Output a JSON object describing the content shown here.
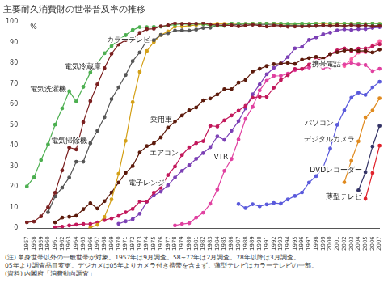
{
  "chart_data": {
    "type": "line",
    "title": "主要耐久消費財の世帯普及率の推移",
    "y_label": "%",
    "categories": [
      "1957",
      "1958",
      "1959",
      "1960",
      "1961",
      "1962",
      "1963",
      "1964",
      "1965",
      "1966",
      "1967",
      "1968",
      "1969",
      "1970",
      "1971",
      "1972",
      "1973",
      "1974",
      "1975",
      "1976",
      "1977",
      "1978",
      "1979",
      "1980",
      "1981",
      "1982",
      "1983",
      "1984",
      "1985",
      "1986",
      "1987",
      "1988",
      "1989",
      "1990",
      "1991",
      "1992",
      "1993",
      "1994",
      "1995",
      "1996",
      "1997",
      "1998",
      "1999",
      "2000",
      "2001",
      "2002",
      "2003",
      "2004",
      "2005",
      "2006",
      "2007"
    ],
    "ylim": [
      0,
      100
    ],
    "yticks": [
      0,
      10,
      20,
      30,
      40,
      50,
      60,
      70,
      80,
      90,
      100
    ],
    "grid": false,
    "marker": "circle",
    "series": [
      {
        "name": "電気冷蔵庫",
        "color": "#7a1f1f",
        "values": [
          2.8,
          3.2,
          5.7,
          10.1,
          17.2,
          28.0,
          39.1,
          38.2,
          51.4,
          61.6,
          69.7,
          77.6,
          84.6,
          89.1,
          91.2,
          91.6,
          94.7,
          96.5,
          96.7,
          97.9,
          98.4,
          99.4,
          99.1,
          99.1,
          99.2,
          99.5,
          98.8,
          98.5,
          98.4,
          98.4,
          97.9,
          98.3,
          98.7,
          98.2,
          97.8,
          98.3,
          98.1,
          97.7,
          97.8,
          97.8,
          98.0,
          98.1,
          98.4,
          98.1,
          98.4,
          98.0,
          98.4,
          98.0,
          98.4,
          97.9,
          98.1
        ]
      },
      {
        "name": "電気洗濯機",
        "color": "#4caf50",
        "values": [
          20.2,
          24.6,
          33.0,
          40.6,
          50.2,
          58.1,
          66.4,
          61.4,
          68.5,
          75.5,
          79.8,
          84.8,
          88.3,
          91.4,
          93.6,
          96.1,
          97.5,
          97.5,
          97.6,
          97.7,
          98.3,
          98.7,
          99.0,
          98.8,
          99.0,
          99.0,
          98.2,
          98.2,
          98.1,
          99.6,
          99.3,
          99.1,
          99.3,
          99.5,
          99.4,
          99.4,
          99.3,
          99.1,
          98.9,
          99.3,
          99.0,
          99.2,
          99.6,
          99.4,
          99.3,
          99.3,
          99.2,
          99.4,
          99.0,
          99.4,
          99.0
        ]
      },
      {
        "name": "電気掃除機",
        "color": "#555555",
        "values": [
          null,
          null,
          null,
          7.7,
          15.4,
          19.6,
          24.5,
          32.2,
          32.2,
          41.2,
          47.2,
          53.8,
          62.6,
          68.3,
          74.3,
          81.0,
          85.2,
          91.2,
          91.2,
          93.7,
          94.5,
          95.8,
          95.9,
          95.8,
          96.3,
          97.1,
          97.2,
          98.4,
          98.4,
          98.5,
          98.8,
          98.3,
          98.8,
          98.8,
          98.9,
          98.8,
          98.3,
          98.4,
          98.3,
          98.2,
          98.3,
          98.1,
          98.3,
          98.3,
          98.3,
          98.1,
          98.6,
          98.5,
          98.3,
          98.2,
          98.3
        ]
      },
      {
        "name": "カラーテレビ",
        "color": "#d4a017",
        "values": [
          null,
          null,
          null,
          null,
          null,
          null,
          null,
          null,
          null,
          0.3,
          1.6,
          5.4,
          13.9,
          26.3,
          42.3,
          61.1,
          75.8,
          85.9,
          90.3,
          93.7,
          95.4,
          97.7,
          97.8,
          98.2,
          98.5,
          98.9,
          98.8,
          99.2,
          99.1,
          99.0,
          98.9,
          99.0,
          99.3,
          99.4,
          99.4,
          99.3,
          99.0,
          98.9,
          98.9,
          99.0,
          99.0,
          99.3,
          99.1,
          98.9,
          99.0,
          99.1,
          99.2,
          99.4,
          99.0,
          99.4,
          99.1
        ]
      },
      {
        "name": "乗用車",
        "color": "#5c1a0b",
        "values": [
          null,
          null,
          null,
          null,
          2.8,
          5.1,
          5.5,
          6.0,
          9.2,
          12.1,
          9.5,
          13.1,
          17.3,
          22.1,
          26.8,
          30.1,
          36.7,
          39.8,
          41.2,
          44.0,
          48.7,
          51.7,
          54.6,
          57.2,
          58.5,
          62.0,
          62.9,
          64.8,
          67.4,
          67.4,
          70.6,
          71.9,
          76.0,
          77.3,
          78.6,
          79.5,
          79.8,
          80.1,
          79.6,
          81.7,
          82.5,
          83.1,
          82.2,
          84.4,
          85.3,
          86.1,
          86.4,
          85.9,
          86.0,
          85.2,
          86.6
        ]
      },
      {
        "name": "エアコン",
        "color": "#c2185b",
        "values": [
          null,
          null,
          null,
          null,
          0.4,
          0.7,
          1.3,
          1.7,
          2.0,
          2.0,
          2.8,
          3.9,
          4.7,
          5.9,
          7.7,
          9.3,
          12.9,
          12.9,
          17.2,
          19.5,
          25.7,
          29.9,
          35.5,
          39.2,
          41.2,
          42.2,
          49.6,
          49.3,
          52.3,
          54.6,
          57.0,
          59.3,
          63.3,
          63.7,
          63.7,
          68.1,
          71.8,
          74.2,
          77.2,
          77.2,
          79.3,
          81.9,
          81.9,
          84.4,
          86.2,
          87.2,
          85.8,
          87.1,
          87.2,
          88.2,
          89.2
        ]
      },
      {
        "name": "電子レンジ",
        "color": "#7b3fb5",
        "values": [
          null,
          null,
          null,
          null,
          null,
          null,
          null,
          null,
          null,
          null,
          null,
          null,
          null,
          2.1,
          3.3,
          4.3,
          7.0,
          12.8,
          15.8,
          17.7,
          20.8,
          24.5,
          27.8,
          30.5,
          33.6,
          36.4,
          39.3,
          44.5,
          42.8,
          47.2,
          51.9,
          58.1,
          64.9,
          69.7,
          74.6,
          77.7,
          79.8,
          83.0,
          87.2,
          87.9,
          91.3,
          92.5,
          94.0,
          94.8,
          95.9,
          96.4,
          96.1,
          96.5,
          96.5,
          97.1,
          97.5
        ]
      },
      {
        "name": "VTR",
        "color": "#e040a0",
        "values": [
          null,
          null,
          null,
          null,
          null,
          null,
          null,
          null,
          null,
          null,
          null,
          null,
          null,
          null,
          null,
          null,
          null,
          null,
          null,
          null,
          null,
          1.3,
          2.0,
          2.4,
          5.1,
          7.5,
          11.8,
          18.7,
          27.8,
          33.5,
          43.0,
          53.0,
          58.8,
          66.8,
          71.5,
          73.8,
          73.9,
          74.9,
          76.6,
          77.2,
          77.9,
          79.2,
          77.6,
          78.1,
          79.2,
          79.4,
          80.1,
          79.4,
          79.1,
          76.2,
          77.3
        ]
      },
      {
        "name": "パソコン",
        "color": "#5a5adc",
        "values": [
          null,
          null,
          null,
          null,
          null,
          null,
          null,
          null,
          null,
          null,
          null,
          null,
          null,
          null,
          null,
          null,
          null,
          null,
          null,
          null,
          null,
          null,
          null,
          null,
          null,
          null,
          null,
          null,
          null,
          null,
          11.7,
          9.7,
          11.6,
          10.6,
          11.5,
          12.2,
          11.9,
          13.9,
          15.6,
          17.3,
          22.1,
          25.2,
          29.5,
          38.6,
          50.1,
          57.2,
          63.3,
          65.7,
          64.6,
          68.3,
          71.0
        ]
      },
      {
        "name": "携帯電話",
        "color": "#ff5fa2",
        "values": [
          null,
          null,
          null,
          null,
          null,
          null,
          null,
          null,
          null,
          null,
          null,
          null,
          null,
          null,
          null,
          null,
          null,
          null,
          null,
          null,
          null,
          null,
          null,
          null,
          null,
          null,
          null,
          null,
          null,
          null,
          null,
          null,
          null,
          null,
          null,
          null,
          null,
          null,
          null,
          null,
          null,
          null,
          null,
          null,
          null,
          78.6,
          81.9,
          85.1,
          85.3,
          88.6,
          90.7
        ]
      },
      {
        "name": "デジタルカメラ",
        "color": "#e08a1e",
        "values": [
          null,
          null,
          null,
          null,
          null,
          null,
          null,
          null,
          null,
          null,
          null,
          null,
          null,
          null,
          null,
          null,
          null,
          null,
          null,
          null,
          null,
          null,
          null,
          null,
          null,
          null,
          null,
          null,
          null,
          null,
          null,
          null,
          null,
          null,
          null,
          null,
          null,
          null,
          null,
          null,
          null,
          null,
          null,
          null,
          null,
          22.2,
          32.7,
          42.1,
          53.7,
          57.1,
          63.0
        ]
      },
      {
        "name": "DVDレコーダー",
        "color": "#333366",
        "values": [
          null,
          null,
          null,
          null,
          null,
          null,
          null,
          null,
          null,
          null,
          null,
          null,
          null,
          null,
          null,
          null,
          null,
          null,
          null,
          null,
          null,
          null,
          null,
          null,
          null,
          null,
          null,
          null,
          null,
          null,
          null,
          null,
          null,
          null,
          null,
          null,
          null,
          null,
          null,
          null,
          null,
          null,
          null,
          null,
          null,
          null,
          null,
          18.3,
          27.1,
          39.6,
          49.6
        ]
      },
      {
        "name": "薄型テレビ",
        "color": "#e0202a",
        "values": [
          null,
          null,
          null,
          null,
          null,
          null,
          null,
          null,
          null,
          null,
          null,
          null,
          null,
          null,
          null,
          null,
          null,
          null,
          null,
          null,
          null,
          null,
          null,
          null,
          null,
          null,
          null,
          null,
          null,
          null,
          null,
          null,
          null,
          null,
          null,
          null,
          null,
          null,
          null,
          null,
          null,
          null,
          null,
          null,
          null,
          null,
          null,
          null,
          14.2,
          26.7,
          40.0
        ]
      }
    ],
    "notes": [
      "(注) 単身世帯以外の一般世帯が対象。1957年は9月調査、58~77年は2月調査、78年以降は3月調査。",
      "05年より調査品目変更。デジカメは05年よりカメラ付き携帯を含まず。薄型テレビはカラーテレビの一部。",
      "(資料) 内閣府「消費動向調査」"
    ]
  }
}
